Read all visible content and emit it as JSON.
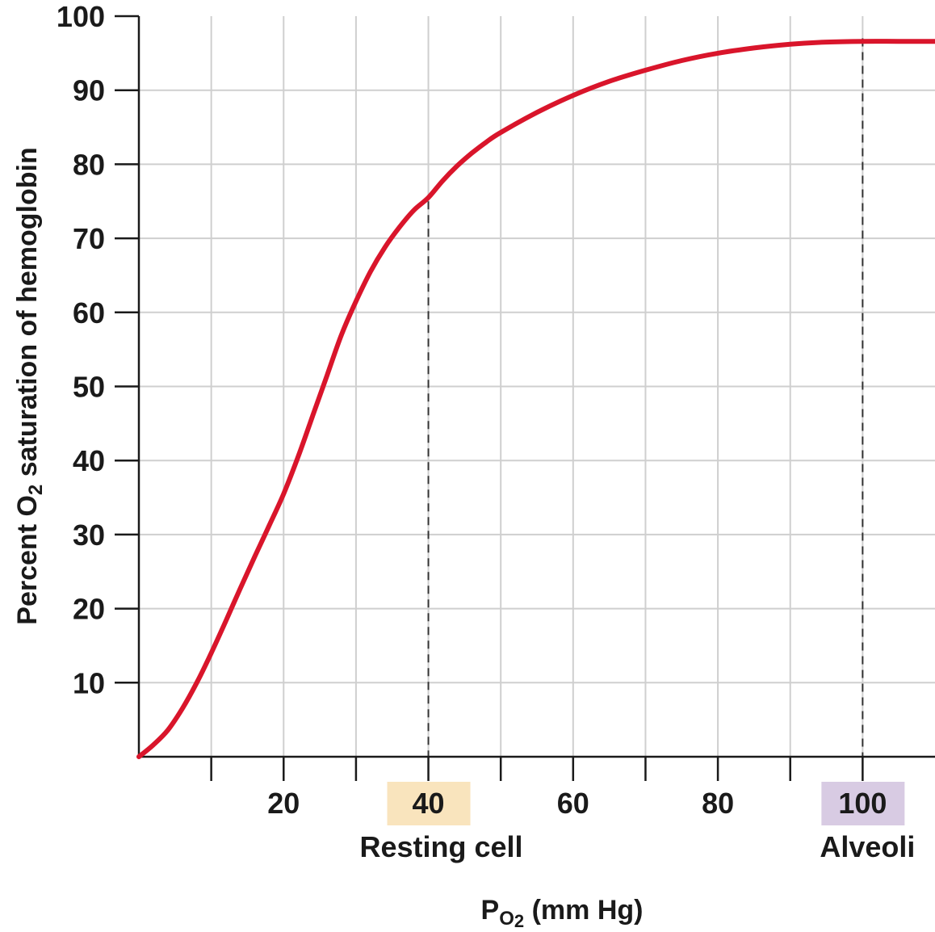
{
  "chart_data": {
    "type": "line",
    "ylabel": {
      "parts": [
        {
          "text": "Percent O",
          "sub": false
        },
        {
          "text": "2",
          "sub": true
        },
        {
          "text": " saturation of hemoglobin",
          "sub": false
        }
      ]
    },
    "xlabel": {
      "parts": [
        {
          "text": "P",
          "sub": false
        },
        {
          "text": "O",
          "sub": true
        },
        {
          "text": "2",
          "subsub": true
        },
        {
          "text": " (mm Hg)",
          "sub": false
        }
      ]
    },
    "xlim": [
      0,
      110
    ],
    "ylim": [
      0,
      100
    ],
    "x_ticks": [
      10,
      20,
      30,
      40,
      50,
      60,
      70,
      80,
      90,
      100
    ],
    "x_tick_labels": [
      {
        "value": 20,
        "label": "20"
      },
      {
        "value": 40,
        "label": "40"
      },
      {
        "value": 60,
        "label": "60"
      },
      {
        "value": 80,
        "label": "80"
      },
      {
        "value": 100,
        "label": "100"
      }
    ],
    "y_tick_labels": [
      {
        "value": 10,
        "label": "10"
      },
      {
        "value": 20,
        "label": "20"
      },
      {
        "value": 30,
        "label": "30"
      },
      {
        "value": 40,
        "label": "40"
      },
      {
        "value": 50,
        "label": "50"
      },
      {
        "value": 60,
        "label": "60"
      },
      {
        "value": 70,
        "label": "70"
      },
      {
        "value": 80,
        "label": "80"
      },
      {
        "value": 90,
        "label": "90"
      },
      {
        "value": 100,
        "label": "100"
      }
    ],
    "grid": true,
    "series": [
      {
        "color": "#d9152b",
        "points": [
          [
            0,
            0
          ],
          [
            2,
            1.6
          ],
          [
            4,
            3.6
          ],
          [
            6,
            6.5
          ],
          [
            8,
            10.0
          ],
          [
            10,
            14.0
          ],
          [
            12,
            18.3
          ],
          [
            14,
            22.7
          ],
          [
            16,
            27.0
          ],
          [
            18,
            31.2
          ],
          [
            20,
            35.5
          ],
          [
            22,
            40.5
          ],
          [
            24,
            46.0
          ],
          [
            26,
            51.5
          ],
          [
            28,
            57.0
          ],
          [
            30,
            61.5
          ],
          [
            32,
            65.5
          ],
          [
            34,
            68.8
          ],
          [
            36,
            71.5
          ],
          [
            38,
            73.8
          ],
          [
            40,
            75.5
          ],
          [
            42,
            77.8
          ],
          [
            44,
            79.8
          ],
          [
            46,
            81.5
          ],
          [
            48,
            83.0
          ],
          [
            50,
            84.3
          ],
          [
            55,
            87.0
          ],
          [
            60,
            89.3
          ],
          [
            65,
            91.2
          ],
          [
            70,
            92.7
          ],
          [
            75,
            94.0
          ],
          [
            80,
            95.0
          ],
          [
            85,
            95.7
          ],
          [
            90,
            96.2
          ],
          [
            95,
            96.5
          ],
          [
            100,
            96.6
          ],
          [
            105,
            96.6
          ],
          [
            110,
            96.6
          ]
        ]
      }
    ],
    "reference_lines": [
      {
        "x": 40,
        "y": 75
      },
      {
        "x": 100,
        "y": 97
      }
    ],
    "annotations": [
      {
        "x": 40,
        "label": "Resting cell",
        "highlight_color": "#f9e4bd"
      },
      {
        "x": 100,
        "label": "Alveoli",
        "highlight_color": "#d8cbe3"
      }
    ],
    "colors": {
      "curve": "#d9152b",
      "grid": "#cfcfcf",
      "axis": "#1a1a1a"
    }
  }
}
